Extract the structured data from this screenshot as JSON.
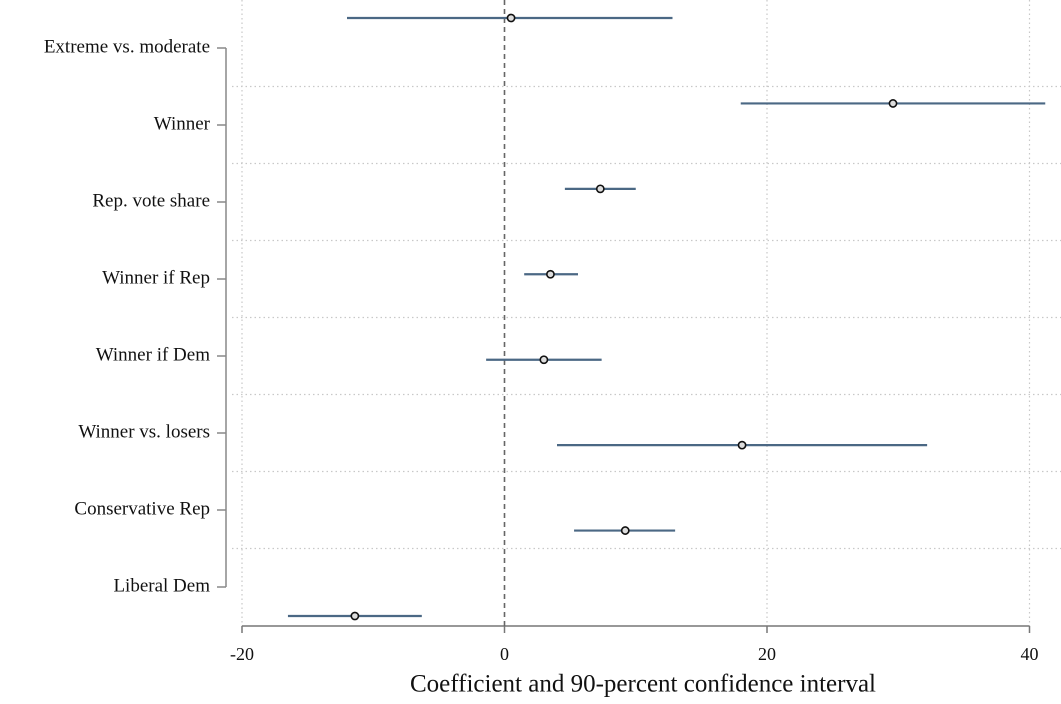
{
  "chart_data": {
    "type": "coefplot",
    "xlabel": "Coefficient and 90-percent confidence interval",
    "categories": [
      "Extreme vs. moderate",
      "Winner",
      "Rep. vote share",
      "Winner if Rep",
      "Winner if Dem",
      "Winner vs. losers",
      "Conservative Rep",
      "Liberal Dem"
    ],
    "values": [
      0.5,
      29.6,
      7.3,
      3.5,
      3.0,
      18.1,
      9.2,
      -11.4
    ],
    "ci_lower": [
      -12.0,
      18.0,
      4.6,
      1.5,
      -1.4,
      4.0,
      5.3,
      -16.5
    ],
    "ci_upper": [
      12.8,
      41.2,
      10.0,
      5.6,
      7.4,
      32.2,
      13.0,
      -6.3
    ],
    "color": "#4b6884",
    "xlim": [
      -20,
      42.4
    ],
    "xticks": [
      -20,
      0,
      20,
      40
    ],
    "refline": 0,
    "grid": true
  }
}
